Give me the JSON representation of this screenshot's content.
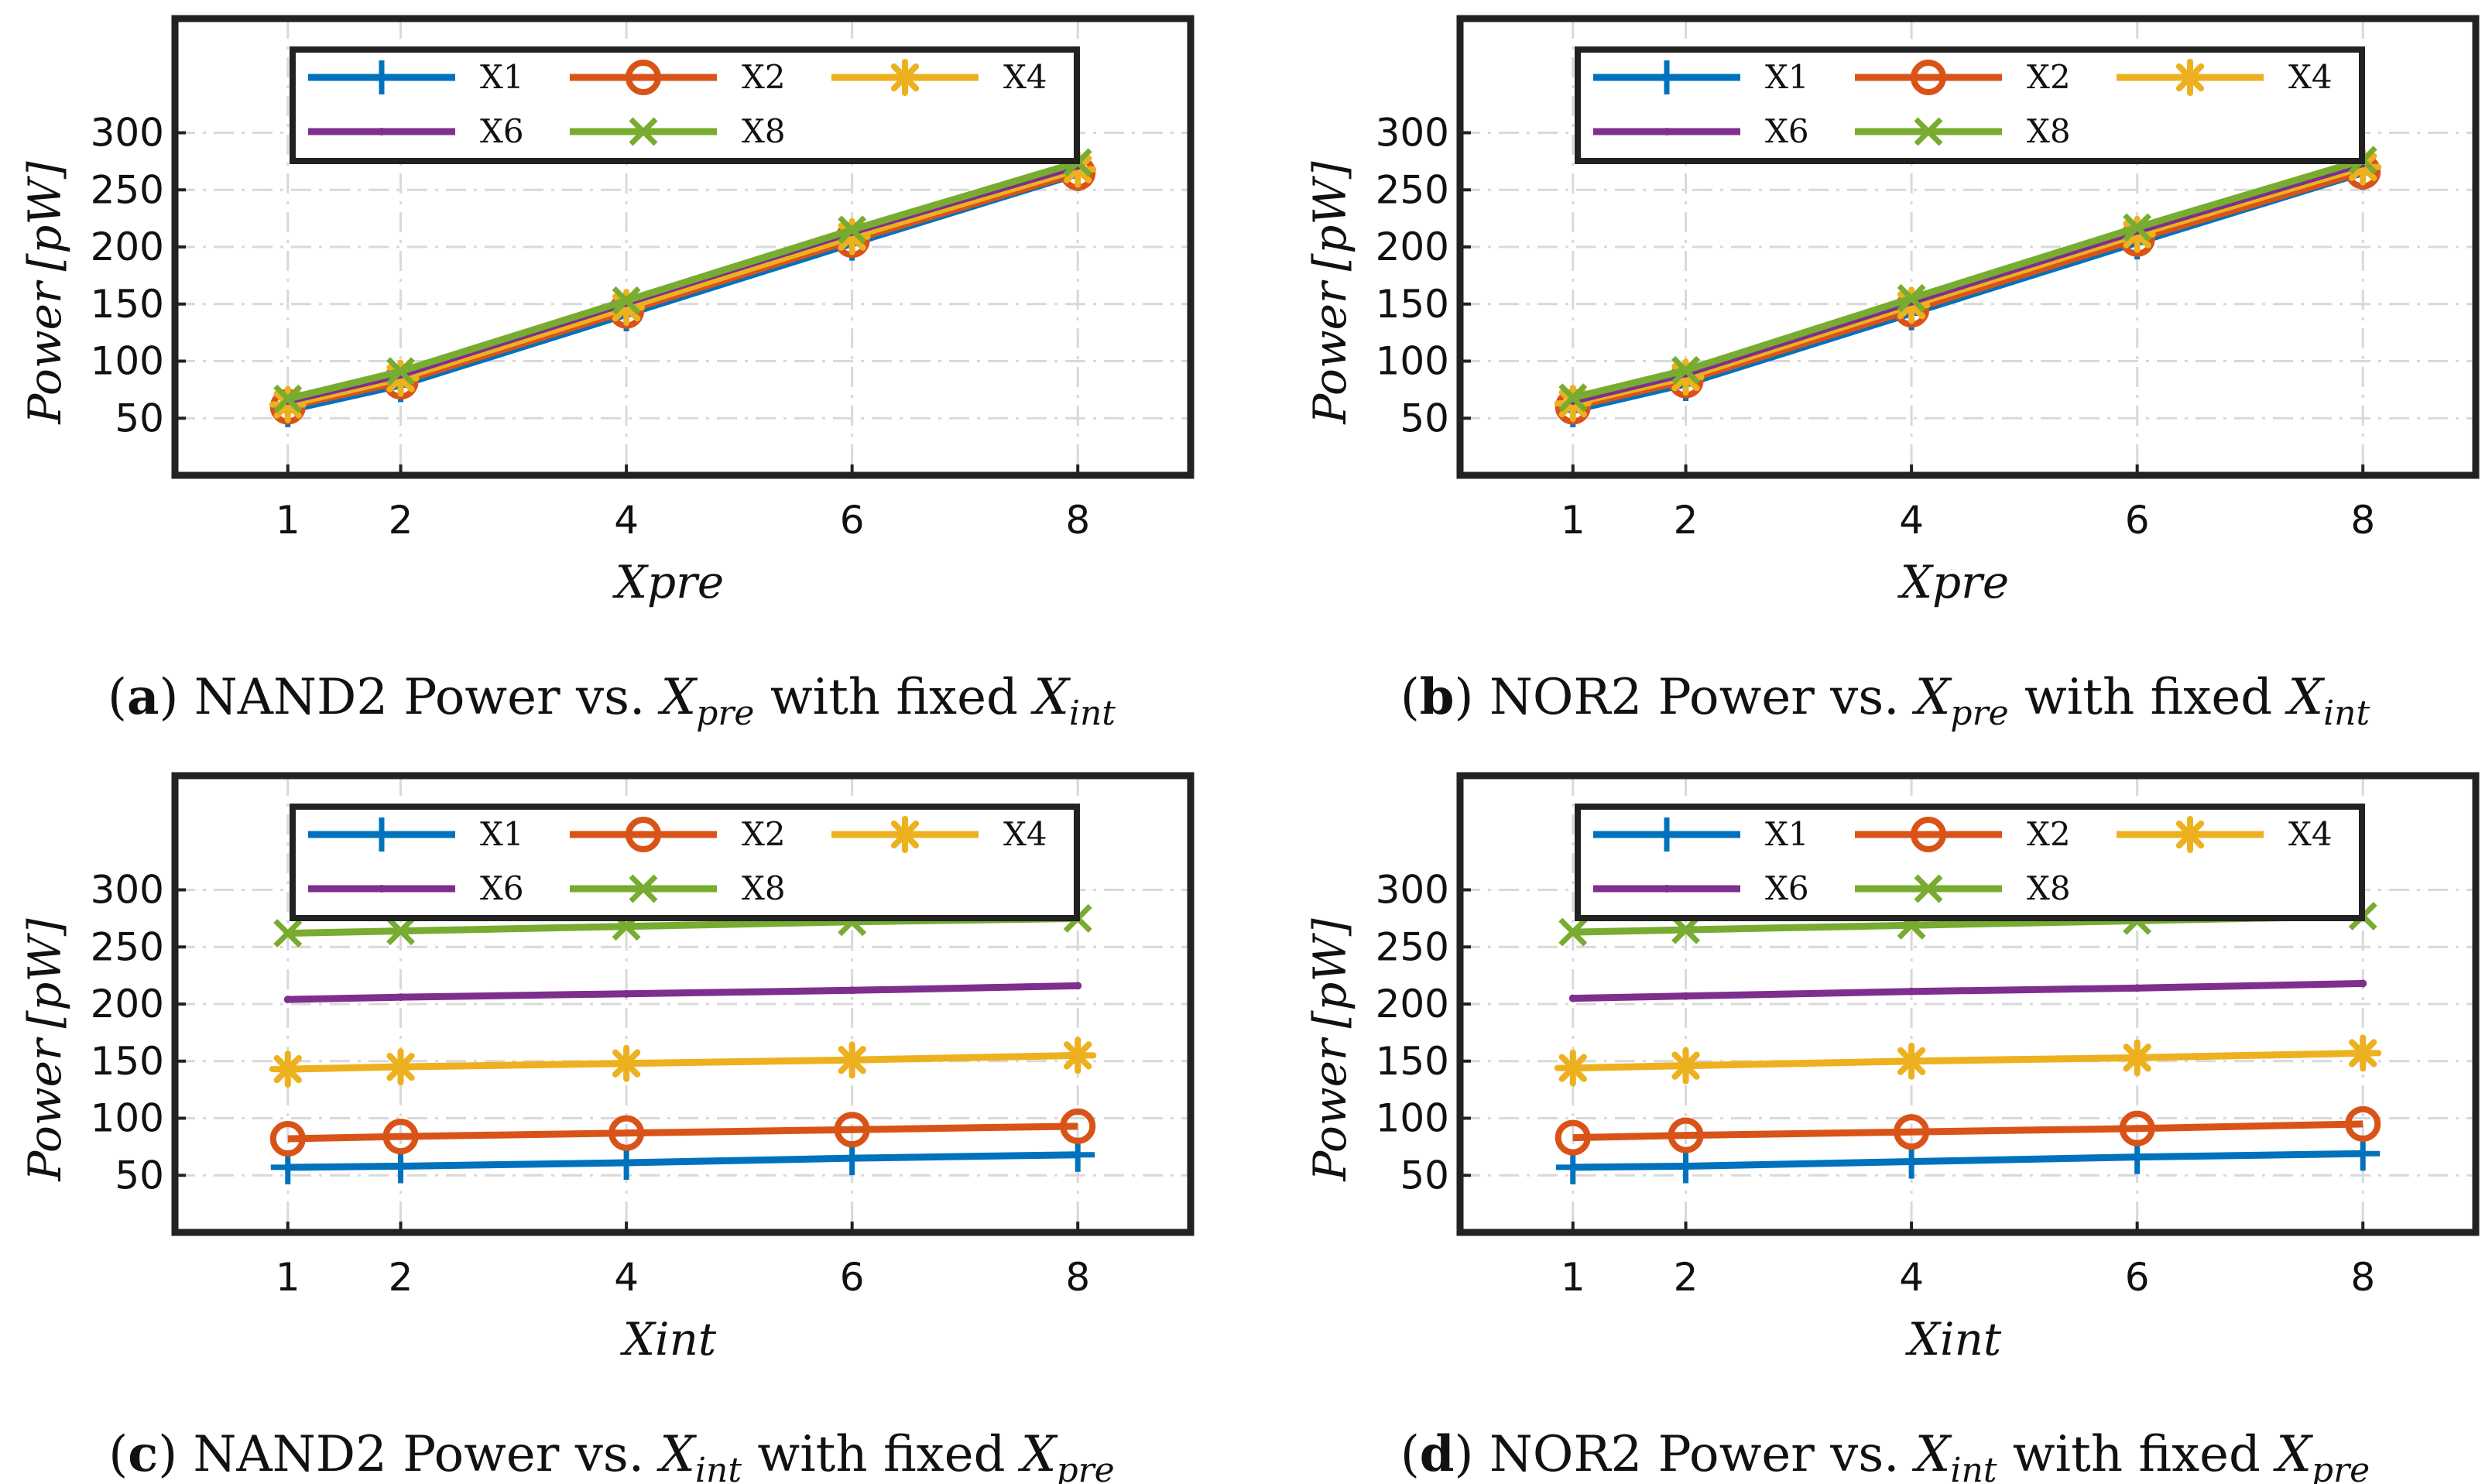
{
  "chart_data": [
    {
      "type": "line",
      "panel": "a",
      "caption": {
        "letter": "a",
        "pre": "NAND2 Power vs. ",
        "var1": "X",
        "sub1": "pre",
        "mid": " with fixed ",
        "var2": "X",
        "sub2": "int"
      },
      "xlabel": "Xpre",
      "ylabel_main": "Power",
      "ylabel_unit": "[pW]",
      "x": [
        1,
        2,
        4,
        6,
        8
      ],
      "xticks": [
        1,
        2,
        4,
        6,
        8
      ],
      "yticks": [
        50,
        100,
        150,
        200,
        250,
        300
      ],
      "xlim": [
        0,
        9
      ],
      "ylim": [
        0,
        400
      ],
      "grid": true,
      "legend_position": "top",
      "series": [
        {
          "name": "X1",
          "marker": "plus",
          "values": [
            57,
            79,
            141,
            203,
            264
          ]
        },
        {
          "name": "X2",
          "marker": "circle",
          "values": [
            60,
            82,
            144,
            206,
            265
          ]
        },
        {
          "name": "X4",
          "marker": "asterisk",
          "values": [
            62,
            85,
            147,
            209,
            268
          ]
        },
        {
          "name": "X6",
          "marker": "dot",
          "values": [
            65,
            88,
            151,
            213,
            271
          ]
        },
        {
          "name": "X8",
          "marker": "x",
          "values": [
            67,
            91,
            153,
            215,
            274
          ]
        }
      ]
    },
    {
      "type": "line",
      "panel": "b",
      "caption": {
        "letter": "b",
        "pre": "NOR2 Power vs. ",
        "var1": "X",
        "sub1": "pre",
        "mid": " with fixed ",
        "var2": "X",
        "sub2": "int"
      },
      "xlabel": "Xpre",
      "ylabel_main": "Power",
      "ylabel_unit": "[pW]",
      "x": [
        1,
        2,
        4,
        6,
        8
      ],
      "xticks": [
        1,
        2,
        4,
        6,
        8
      ],
      "yticks": [
        50,
        100,
        150,
        200,
        250,
        300
      ],
      "xlim": [
        0,
        9
      ],
      "ylim": [
        0,
        400
      ],
      "grid": true,
      "legend_position": "top",
      "series": [
        {
          "name": "X1",
          "marker": "plus",
          "values": [
            57,
            80,
            142,
            204,
            265
          ]
        },
        {
          "name": "X2",
          "marker": "circle",
          "values": [
            60,
            83,
            145,
            207,
            266
          ]
        },
        {
          "name": "X4",
          "marker": "asterisk",
          "values": [
            63,
            86,
            149,
            211,
            270
          ]
        },
        {
          "name": "X6",
          "marker": "dot",
          "values": [
            65,
            89,
            152,
            214,
            273
          ]
        },
        {
          "name": "X8",
          "marker": "x",
          "values": [
            68,
            92,
            155,
            217,
            276
          ]
        }
      ]
    },
    {
      "type": "line",
      "panel": "c",
      "caption": {
        "letter": "c",
        "pre": "NAND2 Power vs. ",
        "var1": "X",
        "sub1": "int",
        "mid": " with fixed ",
        "var2": "X",
        "sub2": "pre"
      },
      "xlabel": "Xint",
      "ylabel_main": "Power",
      "ylabel_unit": "[pW]",
      "x": [
        1,
        2,
        4,
        6,
        8
      ],
      "xticks": [
        1,
        2,
        4,
        6,
        8
      ],
      "yticks": [
        50,
        100,
        150,
        200,
        250,
        300
      ],
      "xlim": [
        0,
        9
      ],
      "ylim": [
        0,
        400
      ],
      "grid": true,
      "legend_position": "top",
      "series": [
        {
          "name": "X1",
          "marker": "plus",
          "values": [
            57,
            58,
            61,
            65,
            68
          ]
        },
        {
          "name": "X2",
          "marker": "circle",
          "values": [
            82,
            84,
            87,
            90,
            93
          ]
        },
        {
          "name": "X4",
          "marker": "asterisk",
          "values": [
            143,
            145,
            148,
            151,
            155
          ]
        },
        {
          "name": "X6",
          "marker": "dot",
          "values": [
            204,
            206,
            209,
            212,
            216
          ]
        },
        {
          "name": "X8",
          "marker": "x",
          "values": [
            262,
            264,
            268,
            272,
            275
          ]
        }
      ]
    },
    {
      "type": "line",
      "panel": "d",
      "caption": {
        "letter": "d",
        "pre": "NOR2 Power vs. ",
        "var1": "X",
        "sub1": "int",
        "mid": " with fixed ",
        "var2": "X",
        "sub2": "pre"
      },
      "xlabel": "Xint",
      "ylabel_main": "Power",
      "ylabel_unit": "[pW]",
      "x": [
        1,
        2,
        4,
        6,
        8
      ],
      "xticks": [
        1,
        2,
        4,
        6,
        8
      ],
      "yticks": [
        50,
        100,
        150,
        200,
        250,
        300
      ],
      "xlim": [
        0,
        9
      ],
      "ylim": [
        0,
        400
      ],
      "grid": true,
      "legend_position": "top",
      "series": [
        {
          "name": "X1",
          "marker": "plus",
          "values": [
            57,
            58,
            62,
            66,
            69
          ]
        },
        {
          "name": "X2",
          "marker": "circle",
          "values": [
            83,
            85,
            88,
            91,
            95
          ]
        },
        {
          "name": "X4",
          "marker": "asterisk",
          "values": [
            144,
            146,
            150,
            153,
            157
          ]
        },
        {
          "name": "X6",
          "marker": "dot",
          "values": [
            205,
            207,
            211,
            214,
            218
          ]
        },
        {
          "name": "X8",
          "marker": "x",
          "values": [
            263,
            265,
            269,
            273,
            277
          ]
        }
      ]
    }
  ],
  "colors": {
    "X1": "#0072BD",
    "X2": "#D95319",
    "X4": "#EDB120",
    "X6": "#7E2F8E",
    "X8": "#77AC30",
    "axis": "#222222",
    "grid": "#d9d9d9"
  }
}
